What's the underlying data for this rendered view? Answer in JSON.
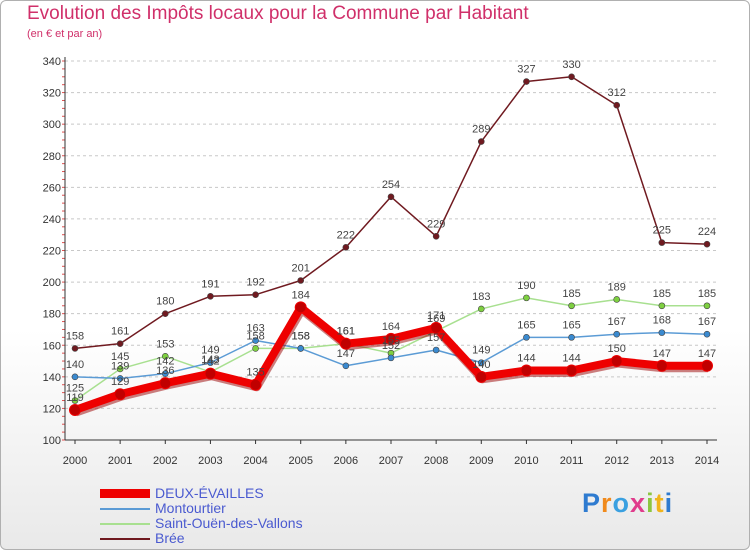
{
  "title": "Evolution des Impôts locaux pour la Commune par Habitant",
  "subtitle": "(en € et par an)",
  "logo": {
    "text": "Proxiti",
    "letters": [
      {
        "ch": "P",
        "color": "#2e7bd0"
      },
      {
        "ch": "r",
        "color": "#f08a1c"
      },
      {
        "ch": "o",
        "color": "#3aa0e0"
      },
      {
        "ch": "x",
        "color": "#e03c8c"
      },
      {
        "ch": "i",
        "color": "#8cc640"
      },
      {
        "ch": "t",
        "color": "#f0b41c"
      },
      {
        "ch": "i",
        "color": "#2e7bd0"
      }
    ]
  },
  "chart_data": {
    "type": "line",
    "title": "Evolution des Impôts locaux pour la Commune par Habitant",
    "subtitle": "(en € et par an)",
    "xlabel": "",
    "ylabel": "",
    "x": [
      2000,
      2001,
      2002,
      2003,
      2004,
      2005,
      2006,
      2007,
      2008,
      2009,
      2010,
      2011,
      2012,
      2013,
      2014
    ],
    "ylim": [
      100,
      340
    ],
    "yticks": [
      100,
      120,
      140,
      160,
      180,
      200,
      220,
      240,
      260,
      280,
      300,
      320,
      340
    ],
    "grid": "horizontal-dashed",
    "legend_position": "bottom-left",
    "series": [
      {
        "name": "Brée",
        "color": "#701a20",
        "marker": "#701a20",
        "values": [
          158,
          161,
          180,
          191,
          192,
          201,
          222,
          254,
          229,
          289,
          327,
          330,
          312,
          225,
          224
        ]
      },
      {
        "name": "Saint-Ouën-des-Vallons",
        "color": "#a8e090",
        "marker": "#7ed040",
        "values": [
          125,
          145,
          153,
          143,
          158,
          158,
          161,
          155,
          169,
          183,
          190,
          185,
          189,
          185,
          185
        ]
      },
      {
        "name": "Montourtier",
        "color": "#5b9bd5",
        "marker": "#3a8ad0",
        "values": [
          140,
          139,
          142,
          149,
          163,
          158,
          147,
          152,
          157,
          149,
          165,
          165,
          167,
          168,
          167
        ]
      },
      {
        "name": "DEUX-ÉVAILLES",
        "color": "#ee0000",
        "marker": "#c00000",
        "values": [
          119,
          129,
          136,
          142,
          135,
          184,
          161,
          164,
          171,
          140,
          144,
          144,
          150,
          147,
          147
        ]
      }
    ],
    "legend_order": [
      "DEUX-ÉVAILLES",
      "Montourtier",
      "Saint-Ouën-des-Vallons",
      "Brée"
    ]
  }
}
